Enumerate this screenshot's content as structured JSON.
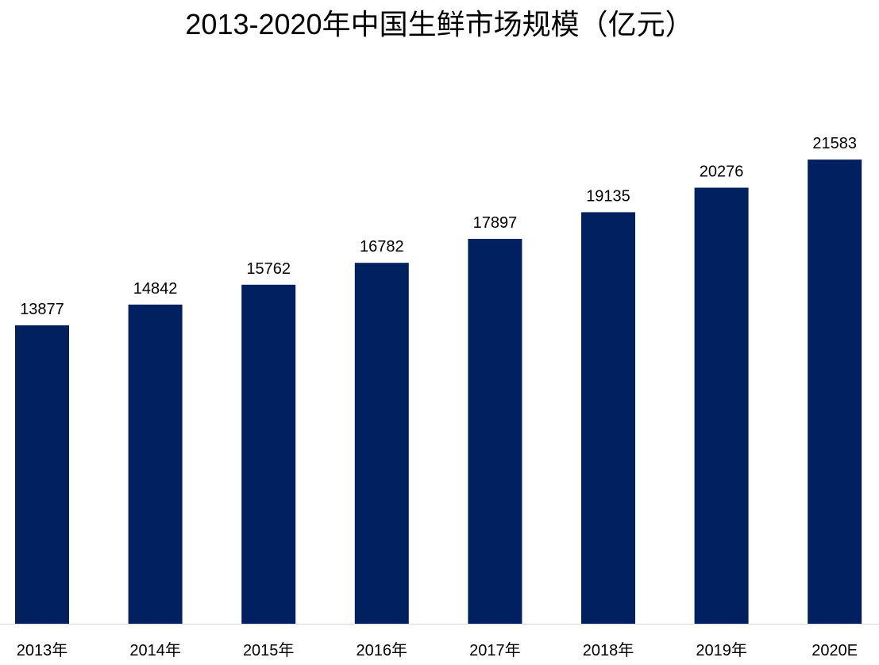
{
  "chart_data": {
    "type": "bar",
    "title": "2013-2020年中国生鲜市场规模（亿元）",
    "categories": [
      "2013年",
      "2014年",
      "2015年",
      "2016年",
      "2017年",
      "2018年",
      "2019年",
      "2020E"
    ],
    "values": [
      13877,
      14842,
      15762,
      16782,
      17897,
      19135,
      20276,
      21583
    ],
    "value_labels": [
      "13877",
      "14842",
      "15762",
      "16782",
      "17897",
      "19135",
      "20276",
      "21583"
    ],
    "xlabel": "",
    "ylabel": "",
    "ylim": [
      0,
      25000
    ],
    "grid": false,
    "legend": "none",
    "bar_color": "#002060"
  }
}
